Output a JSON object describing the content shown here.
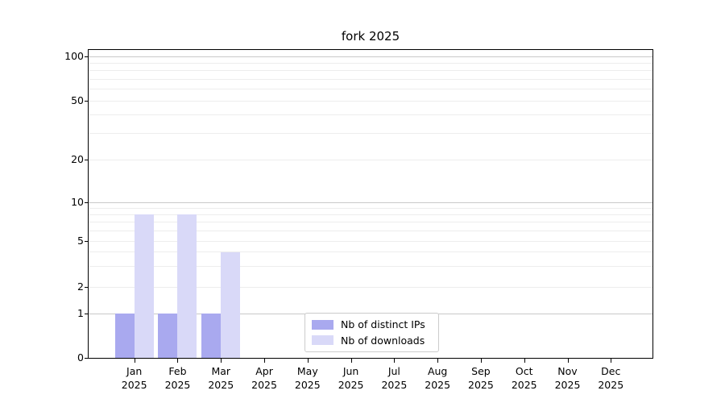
{
  "chart_data": {
    "type": "bar",
    "title": "fork 2025",
    "categories": [
      "Jan",
      "Feb",
      "Mar",
      "Apr",
      "May",
      "Jun",
      "Jul",
      "Aug",
      "Sep",
      "Oct",
      "Nov",
      "Dec"
    ],
    "x_year": "2025",
    "series": [
      {
        "name": "Nb of distinct IPs",
        "color": "#a9a9ef",
        "values": [
          1,
          1,
          1,
          0,
          0,
          0,
          0,
          0,
          0,
          0,
          0,
          0
        ]
      },
      {
        "name": "Nb of downloads",
        "color": "#d9d9f8",
        "values": [
          8,
          8,
          4,
          0,
          0,
          0,
          0,
          0,
          0,
          0,
          0,
          0
        ]
      }
    ],
    "y_ticks": [
      0,
      1,
      2,
      5,
      10,
      20,
      50,
      100
    ],
    "y_minor_gridlines": [
      2,
      3,
      4,
      5,
      6,
      7,
      8,
      9,
      20,
      30,
      40,
      50,
      60,
      70,
      80,
      90
    ],
    "y_major_gridlines": [
      1,
      10,
      100
    ],
    "y_scale": "linear 0-1, log above 1",
    "ylim": [
      0,
      110
    ],
    "grid": "horizontal only",
    "legend_position": "inside plot, lower center"
  }
}
